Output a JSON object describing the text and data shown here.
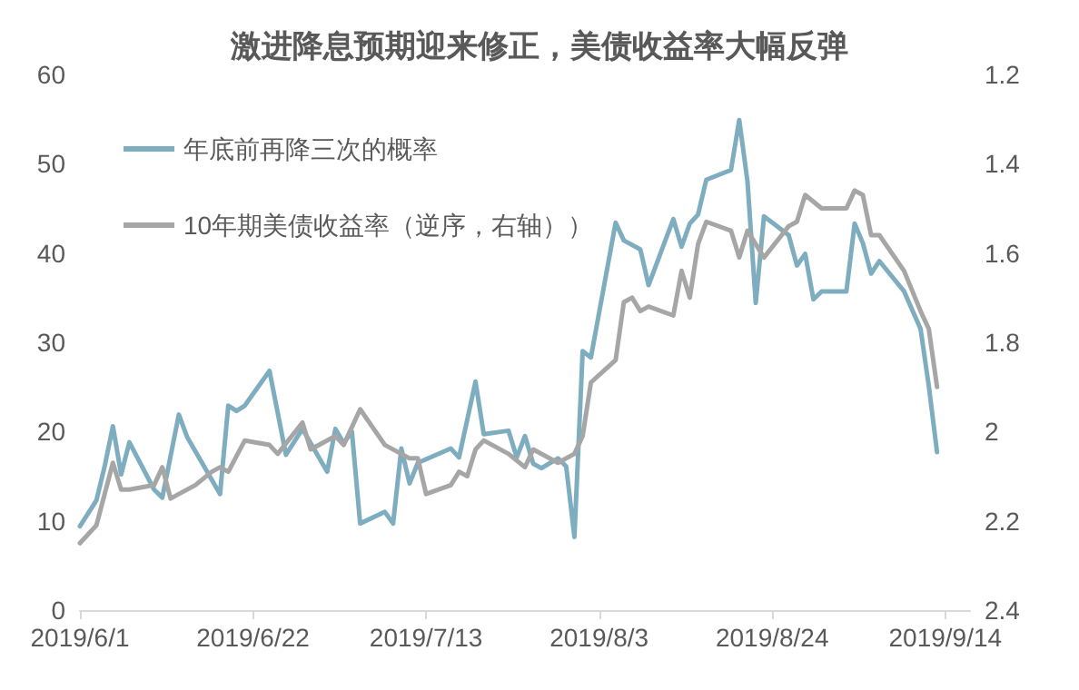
{
  "chart_data": {
    "type": "line",
    "title": "激进降息预期迎来修正，美债收益率大幅反弹",
    "xlim": [
      "2019-06-01",
      "2019-09-17"
    ],
    "xticks": [
      {
        "value": "2019-06-01",
        "label": "2019/6/1"
      },
      {
        "value": "2019-06-22",
        "label": "2019/6/22"
      },
      {
        "value": "2019-07-13",
        "label": "2019/7/13"
      },
      {
        "value": "2019-08-03",
        "label": "2019/8/3"
      },
      {
        "value": "2019-08-24",
        "label": "2019/8/24"
      },
      {
        "value": "2019-09-14",
        "label": "2019/9/14"
      }
    ],
    "ylim": [
      0,
      60
    ],
    "yticks": [
      0,
      10,
      20,
      30,
      40,
      50,
      60
    ],
    "y2lim": [
      2.4,
      1.2
    ],
    "y2ticks": [
      1.2,
      1.4,
      1.6,
      1.8,
      2,
      2.2,
      2.4
    ],
    "grid": false,
    "legend": "top left",
    "marker": "none",
    "series": [
      {
        "name": "年底前再降三次的概率",
        "color": "#7fadc0",
        "x": [
          "2019-06-01",
          "2019-06-03",
          "2019-06-04",
          "2019-06-05",
          "2019-06-06",
          "2019-06-07",
          "2019-06-10",
          "2019-06-11",
          "2019-06-13",
          "2019-06-14",
          "2019-06-18",
          "2019-06-19",
          "2019-06-20",
          "2019-06-21",
          "2019-06-24",
          "2019-06-26",
          "2019-06-28",
          "2019-07-01",
          "2019-07-02",
          "2019-07-03",
          "2019-07-04",
          "2019-07-05",
          "2019-07-08",
          "2019-07-09",
          "2019-07-10",
          "2019-07-11",
          "2019-07-12",
          "2019-07-16",
          "2019-07-17",
          "2019-07-19",
          "2019-07-20",
          "2019-07-23",
          "2019-07-24",
          "2019-07-25",
          "2019-07-26",
          "2019-07-27",
          "2019-07-29",
          "2019-07-30",
          "2019-07-31",
          "2019-08-01",
          "2019-08-02",
          "2019-08-05",
          "2019-08-06",
          "2019-08-08",
          "2019-08-09",
          "2019-08-12",
          "2019-08-13",
          "2019-08-14",
          "2019-08-15",
          "2019-08-16",
          "2019-08-19",
          "2019-08-20",
          "2019-08-21",
          "2019-08-22",
          "2019-08-23",
          "2019-08-26",
          "2019-08-27",
          "2019-08-28",
          "2019-08-29",
          "2019-08-30",
          "2019-09-02",
          "2019-09-03",
          "2019-09-04",
          "2019-09-05",
          "2019-09-06",
          "2019-09-09",
          "2019-09-11",
          "2019-09-12",
          "2019-09-13"
        ],
        "values": [
          9.4,
          12.3,
          16.1,
          20.6,
          15.2,
          18.8,
          13.5,
          12.6,
          21.9,
          19.4,
          13.0,
          22.9,
          22.3,
          22.9,
          26.8,
          17.4,
          20.3,
          15.5,
          20.3,
          18.7,
          20.0,
          9.7,
          11.0,
          9.7,
          18.1,
          14.2,
          16.5,
          18.1,
          17.1,
          25.6,
          19.7,
          20.1,
          17.1,
          19.5,
          16.4,
          15.9,
          17.0,
          16.1,
          8.2,
          29.0,
          28.3,
          43.4,
          41.4,
          40.4,
          36.4,
          43.8,
          40.7,
          43.3,
          44.3,
          48.2,
          49.3,
          54.9,
          48.0,
          34.4,
          44.1,
          42.0,
          38.6,
          39.9,
          34.8,
          35.7,
          35.7,
          43.3,
          41.1,
          37.7,
          39.1,
          35.7,
          31.5,
          25.1,
          17.7
        ]
      },
      {
        "name": "10年期美债收益率（逆序，右轴））",
        "color": "#a6a6a6",
        "axis": "y2",
        "x": [
          "2019-06-01",
          "2019-06-03",
          "2019-06-05",
          "2019-06-06",
          "2019-06-07",
          "2019-06-10",
          "2019-06-11",
          "2019-06-12",
          "2019-06-13",
          "2019-06-15",
          "2019-06-17",
          "2019-06-18",
          "2019-06-19",
          "2019-06-21",
          "2019-06-24",
          "2019-06-25",
          "2019-06-28",
          "2019-06-29",
          "2019-07-02",
          "2019-07-03",
          "2019-07-05",
          "2019-07-08",
          "2019-07-11",
          "2019-07-12",
          "2019-07-13",
          "2019-07-16",
          "2019-07-17",
          "2019-07-18",
          "2019-07-19",
          "2019-07-20",
          "2019-07-23",
          "2019-07-25",
          "2019-07-26",
          "2019-07-29",
          "2019-07-31",
          "2019-08-01",
          "2019-08-02",
          "2019-08-05",
          "2019-08-06",
          "2019-08-07",
          "2019-08-08",
          "2019-08-09",
          "2019-08-12",
          "2019-08-13",
          "2019-08-14",
          "2019-08-15",
          "2019-08-16",
          "2019-08-19",
          "2019-08-20",
          "2019-08-21",
          "2019-08-23",
          "2019-08-26",
          "2019-08-27",
          "2019-08-28",
          "2019-08-30",
          "2019-09-02",
          "2019-09-03",
          "2019-09-04",
          "2019-09-05",
          "2019-09-06",
          "2019-09-09",
          "2019-09-11",
          "2019-09-12",
          "2019-09-13"
        ],
        "values": [
          2.25,
          2.21,
          2.07,
          2.13,
          2.13,
          2.12,
          2.08,
          2.15,
          2.14,
          2.12,
          2.09,
          2.08,
          2.09,
          2.02,
          2.03,
          2.05,
          1.98,
          2.04,
          2.01,
          2.03,
          1.95,
          2.03,
          2.06,
          2.06,
          2.14,
          2.12,
          2.09,
          2.1,
          2.04,
          2.02,
          2.05,
          2.08,
          2.04,
          2.07,
          2.05,
          2.01,
          1.89,
          1.84,
          1.71,
          1.7,
          1.73,
          1.72,
          1.74,
          1.64,
          1.7,
          1.58,
          1.53,
          1.55,
          1.61,
          1.55,
          1.61,
          1.54,
          1.53,
          1.47,
          1.5,
          1.5,
          1.46,
          1.47,
          1.56,
          1.56,
          1.64,
          1.73,
          1.77,
          1.9
        ]
      }
    ]
  }
}
